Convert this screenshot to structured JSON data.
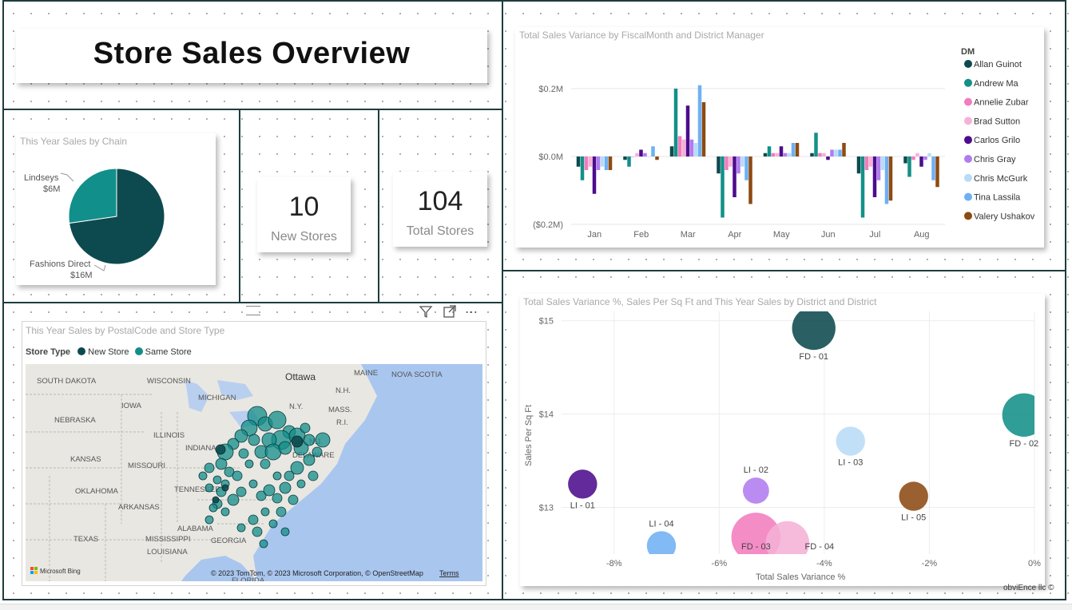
{
  "title": "Store Sales Overview",
  "pie": {
    "title": "This Year Sales by Chain",
    "slices": [
      {
        "name": "Lindseys",
        "value_label": "$6M",
        "value": 6,
        "color": "#118f8a"
      },
      {
        "name": "Fashions Direct",
        "value_label": "$16M",
        "value": 16,
        "color": "#0d4a4f"
      }
    ]
  },
  "kpis": {
    "new_stores": {
      "value": "10",
      "label": "New Stores"
    },
    "total_stores": {
      "value": "104",
      "label": "Total Stores"
    }
  },
  "map": {
    "title": "This Year Sales by PostalCode and Store Type",
    "legend_title": "Store Type",
    "legend_items": [
      {
        "name": "New Store",
        "color": "#0d4a4f"
      },
      {
        "name": "Same Store",
        "color": "#138e89"
      }
    ],
    "labels": [
      "SOUTH DAKOTA",
      "WISCONSIN",
      "Ottawa",
      "MAINE",
      "NOVA SCOTIA",
      "IOWA",
      "MICHIGAN",
      "N.H.",
      "NEBRASKA",
      "ILLINOIS",
      "N.Y.",
      "MASS.",
      "INDIANA",
      "R.I.",
      "KANSAS",
      "MISSOURI",
      "N.J.",
      "DELAWARE",
      "OKLAHOMA",
      "TENNESSEE",
      "ARKANSAS",
      "ALABAMA",
      "TEXAS",
      "MISSISSIPPI",
      "GEORGIA",
      "LOUISIANA",
      "FLORIDA"
    ],
    "attribution": "© 2023 TomTom, © 2023 Microsoft Corporation, © OpenStreetMap",
    "terms": "Terms",
    "bing": "Microsoft Bing"
  },
  "bar_chart": {
    "title": "Total Sales Variance by FiscalMonth and District Manager",
    "legend_title": "DM",
    "legend": [
      {
        "name": "Allan Guinot",
        "color": "#0d4a4f"
      },
      {
        "name": "Andrew Ma",
        "color": "#139089"
      },
      {
        "name": "Annelie Zubar",
        "color": "#f27cbd"
      },
      {
        "name": "Brad Sutton",
        "color": "#f5b1d6"
      },
      {
        "name": "Carlos Grilo",
        "color": "#4c0d8c"
      },
      {
        "name": "Chris Gray",
        "color": "#b07cf0"
      },
      {
        "name": "Chris McGurk",
        "color": "#b8dcf7"
      },
      {
        "name": "Tina Lassila",
        "color": "#6fb0f3"
      },
      {
        "name": "Valery Ushakov",
        "color": "#8d4a12"
      }
    ],
    "y_ticks": [
      "$0.2M",
      "$0.0M",
      "($0.2M)"
    ]
  },
  "scatter": {
    "title": "Total Sales Variance %, Sales Per Sq Ft and This Year Sales by District and District",
    "xlabel": "Total Sales Variance %",
    "ylabel": "Sales Per Sq Ft",
    "x_ticks": [
      "-8%",
      "-6%",
      "-4%",
      "-2%",
      "0%"
    ],
    "y_ticks": [
      "$15",
      "$14",
      "$13"
    ],
    "watermark": "obviEnce llc ©"
  },
  "chart_data": [
    {
      "type": "pie",
      "title": "This Year Sales by Chain",
      "categories": [
        "Fashions Direct",
        "Lindseys"
      ],
      "values": [
        16,
        6
      ],
      "units": "$M"
    },
    {
      "type": "bar",
      "title": "Total Sales Variance by FiscalMonth and District Manager",
      "xlabel": "",
      "ylabel": "",
      "categories": [
        "Jan",
        "Feb",
        "Mar",
        "Apr",
        "May",
        "Jun",
        "Jul",
        "Aug"
      ],
      "ylim": [
        -0.2,
        0.2
      ],
      "units": "$M",
      "series": [
        {
          "name": "Allan Guinot",
          "values": [
            -0.03,
            -0.01,
            0.03,
            -0.05,
            0.01,
            0.01,
            -0.05,
            -0.02
          ]
        },
        {
          "name": "Andrew Ma",
          "values": [
            -0.07,
            -0.03,
            0.2,
            -0.18,
            0.03,
            0.07,
            -0.18,
            -0.06
          ]
        },
        {
          "name": "Annelie Zubar",
          "values": [
            -0.04,
            0.0,
            0.06,
            -0.04,
            0.01,
            0.01,
            -0.04,
            -0.01
          ]
        },
        {
          "name": "Brad Sutton",
          "values": [
            -0.03,
            0.01,
            0.05,
            -0.03,
            0.01,
            0.01,
            -0.03,
            0.01
          ]
        },
        {
          "name": "Carlos Grilo",
          "values": [
            -0.11,
            0.02,
            0.15,
            -0.12,
            0.03,
            -0.01,
            -0.12,
            -0.03
          ]
        },
        {
          "name": "Chris Gray",
          "values": [
            -0.04,
            0.01,
            0.05,
            -0.05,
            0.01,
            0.02,
            -0.07,
            -0.01
          ]
        },
        {
          "name": "Chris McGurk",
          "values": [
            -0.03,
            0.0,
            0.04,
            -0.03,
            0.01,
            0.02,
            -0.04,
            0.01
          ]
        },
        {
          "name": "Tina Lassila",
          "values": [
            -0.04,
            0.03,
            0.21,
            -0.07,
            0.04,
            0.02,
            -0.14,
            -0.07
          ]
        },
        {
          "name": "Valery Ushakov",
          "values": [
            -0.04,
            -0.01,
            0.16,
            -0.14,
            0.04,
            0.04,
            -0.13,
            -0.09
          ]
        }
      ]
    },
    {
      "type": "scatter",
      "title": "Total Sales Variance %, Sales Per Sq Ft and This Year Sales by District and District",
      "xlabel": "Total Sales Variance %",
      "ylabel": "Sales Per Sq Ft",
      "xlim": [
        -9,
        0
      ],
      "ylim": [
        12.5,
        15.1
      ],
      "points": [
        {
          "label": "FD - 01",
          "x": -4.2,
          "y": 14.92,
          "size": 1.4,
          "color": "#0d4a4f"
        },
        {
          "label": "FD - 02",
          "x": -0.2,
          "y": 13.99,
          "size": 1.4,
          "color": "#139089"
        },
        {
          "label": "LI - 03",
          "x": -3.5,
          "y": 13.71,
          "size": 0.9,
          "color": "#b8dcf7"
        },
        {
          "label": "LI - 01",
          "x": -8.6,
          "y": 13.25,
          "size": 0.9,
          "color": "#4c0d8c"
        },
        {
          "label": "LI - 02",
          "x": -5.3,
          "y": 13.18,
          "size": 0.8,
          "color": "#b07cf0"
        },
        {
          "label": "FD - 03",
          "x": -5.3,
          "y": 12.68,
          "size": 1.6,
          "color": "#f27cbd"
        },
        {
          "label": "LI - 05",
          "x": -2.3,
          "y": 13.12,
          "size": 0.9,
          "color": "#8d4a12"
        },
        {
          "label": "LI - 04",
          "x": -7.1,
          "y": 12.59,
          "size": 0.9,
          "color": "#6fb0f3"
        },
        {
          "label": "FD - 04",
          "x": -4.7,
          "y": 12.62,
          "size": 1.4,
          "color": "#f5b1d6"
        }
      ]
    }
  ]
}
